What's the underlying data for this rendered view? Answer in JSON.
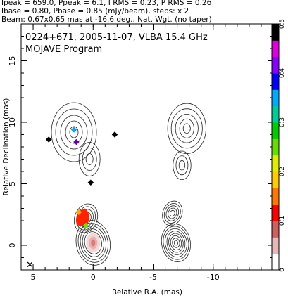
{
  "header": {
    "line1": "Ipeak = 659.0, Ppeak = 6.1, I RMS = 0.23, P RMS = 0.26",
    "line2": "Ibase = 0.80, Pbase = 0.85 (mJy/beam), steps: x 2",
    "line3": "Beam: 0.67x0.65 mas at -16.6 deg., Nat. Wgt. (no taper)"
  },
  "chart_data": {
    "type": "heatmap",
    "title": "0224+671, 2005-11-07, VLBA 15.4 GHz",
    "subtitle": "MOJAVE Program",
    "xlabel": "Relative R.A. (mas)",
    "ylabel": "Relative Declination (mas)",
    "xlim": [
      6,
      -15
    ],
    "ylim": [
      -2,
      18
    ],
    "x_ticks": [
      5,
      0,
      -5,
      -10
    ],
    "x_tick_labels": [
      "5",
      "0",
      "-5",
      "-10"
    ],
    "y_ticks": [
      0,
      5,
      10,
      15
    ],
    "y_tick_labels": [
      "0",
      "5",
      "10",
      "15"
    ],
    "colorbar": {
      "ticks": [
        0,
        0.1,
        0.2,
        0.3,
        0.4,
        0.5
      ],
      "tick_labels": [
        "0",
        "0.1",
        "0.2",
        "0.3",
        "0.4",
        "0.5"
      ],
      "colors": [
        "#ffffff",
        "#e8b8b8",
        "#d06060",
        "#ff0000",
        "#ff7700",
        "#ffcc00",
        "#ddee00",
        "#66dd00",
        "#00cc00",
        "#00cc99",
        "#00aaff",
        "#0000ff",
        "#8800ff",
        "#dd00dd",
        "#000000"
      ]
    },
    "panels": [
      {
        "name": "left",
        "contour_centers": [
          [
            0,
            0.2
          ],
          [
            0.6,
            2.2
          ],
          [
            1.6,
            9.2
          ],
          [
            0.3,
            7.0
          ]
        ],
        "polarization_spots": [
          {
            "x": 0.9,
            "y": 2.2,
            "color": "#ff2200"
          },
          {
            "x": 0.6,
            "y": 1.6,
            "color": "#77dd00"
          },
          {
            "x": 1.2,
            "y": 2.7,
            "color": "#ffaa00"
          },
          {
            "x": 1.4,
            "y": 8.4,
            "color": "#6600aa"
          },
          {
            "x": 1.6,
            "y": 9.4,
            "color": "#00aaff"
          },
          {
            "x": -1.8,
            "y": 9.0,
            "color": "#000000"
          },
          {
            "x": 0.2,
            "y": 5.1,
            "color": "#000000"
          },
          {
            "x": 3.7,
            "y": 8.6,
            "color": "#000000"
          }
        ]
      },
      {
        "name": "right",
        "contour_centers": [
          [
            -6.9,
            0.2
          ],
          [
            -6.6,
            2.6
          ],
          [
            -7.8,
            9.5
          ],
          [
            -7.4,
            6.5
          ]
        ]
      }
    ]
  }
}
